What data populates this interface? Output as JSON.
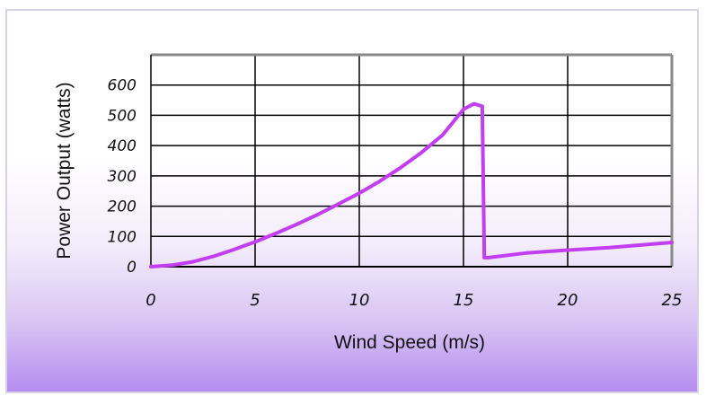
{
  "chart_data": {
    "type": "line",
    "title": "",
    "xlabel": "Wind Speed (m/s)",
    "ylabel": "Power Output (watts)",
    "xlim": [
      0,
      25
    ],
    "ylim": [
      0,
      700
    ],
    "x_ticks": [
      "0",
      "5",
      "10",
      "15",
      "20",
      "25"
    ],
    "y_ticks": [
      "0",
      "100",
      "200",
      "300",
      "400",
      "500",
      "600"
    ],
    "grid": true,
    "legend": "none",
    "series": [
      {
        "color": "#c23ef0",
        "x": [
          0,
          1,
          2,
          3,
          4,
          5,
          6,
          7,
          8,
          9,
          10,
          11,
          12,
          13,
          14,
          15,
          15.5,
          15.9,
          16.0,
          16.2,
          18,
          20,
          22,
          25
        ],
        "y": [
          0,
          5,
          16,
          34,
          57,
          82,
          110,
          140,
          172,
          207,
          243,
          283,
          328,
          378,
          435,
          520,
          538,
          530,
          30,
          30,
          45,
          55,
          63,
          80
        ]
      }
    ]
  },
  "colors": {
    "line": "#c23ef0",
    "grid": "#000000",
    "frame": "#888888"
  }
}
